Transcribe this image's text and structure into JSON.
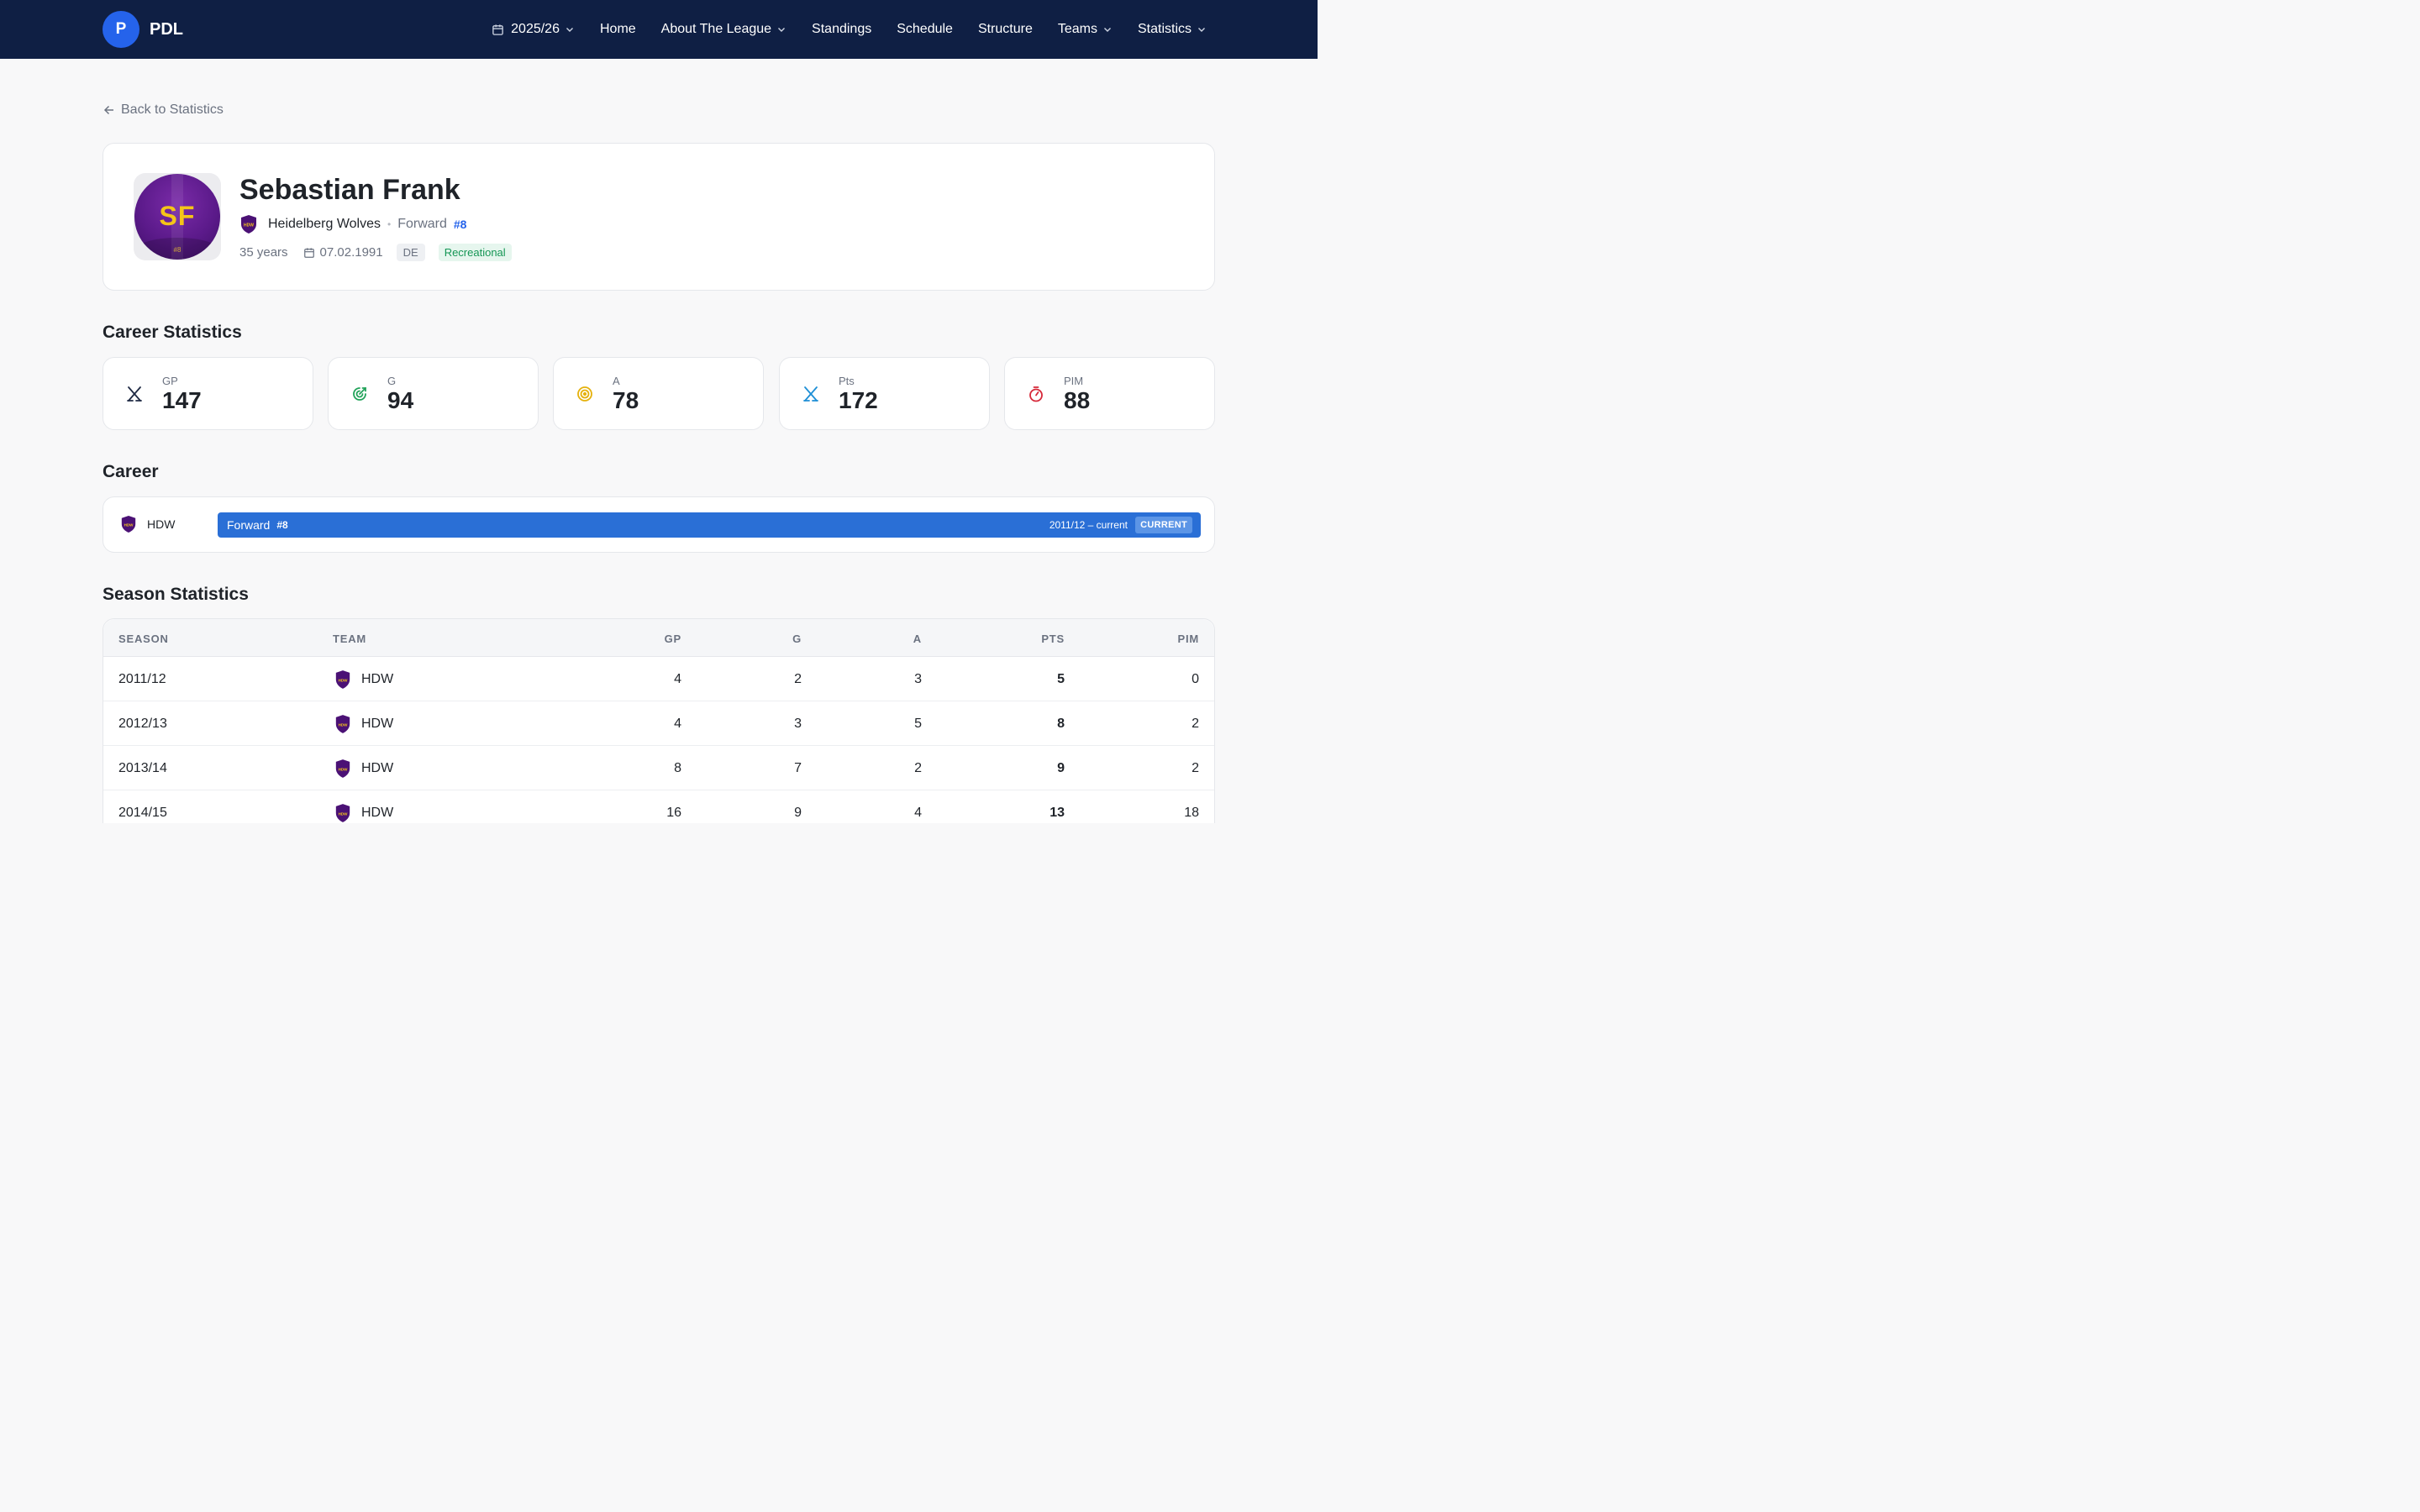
{
  "nav": {
    "brand_initial": "P",
    "brand_name": "PDL",
    "season": "2025/26",
    "items": [
      {
        "label": "Home",
        "dropdown": false
      },
      {
        "label": "About The League",
        "dropdown": true
      },
      {
        "label": "Standings",
        "dropdown": false
      },
      {
        "label": "Schedule",
        "dropdown": false
      },
      {
        "label": "Structure",
        "dropdown": false
      },
      {
        "label": "Teams",
        "dropdown": true
      },
      {
        "label": "Statistics",
        "dropdown": true
      }
    ]
  },
  "back_link": "Back to Statistics",
  "player": {
    "name": "Sebastian Frank",
    "initials": "SF",
    "avatar_number": "#8",
    "team": "Heidelberg Wolves",
    "team_abbr": "HDW",
    "position": "Forward",
    "jersey": "#8",
    "age": "35 years",
    "birthdate": "07.02.1991",
    "nationality": "DE",
    "level": "Recreational"
  },
  "sections": {
    "career_stats": "Career Statistics",
    "career": "Career",
    "season_stats": "Season Statistics"
  },
  "career_stats": [
    {
      "label": "GP",
      "value": "147",
      "icon": "crossed-sticks-icon",
      "color": "#1f2a44"
    },
    {
      "label": "G",
      "value": "94",
      "icon": "goal-target-icon",
      "color": "#22a35a"
    },
    {
      "label": "A",
      "value": "78",
      "icon": "bullseye-icon",
      "color": "#e5b10c"
    },
    {
      "label": "Pts",
      "value": "172",
      "icon": "crossed-sticks-icon",
      "color": "#1e8fd6"
    },
    {
      "label": "PIM",
      "value": "88",
      "icon": "stopwatch-icon",
      "color": "#d62839"
    }
  ],
  "career": {
    "team": "HDW",
    "position": "Forward",
    "number": "#8",
    "span": "2011/12 – current",
    "badge": "CURRENT"
  },
  "season_table": {
    "headers": {
      "season": "SEASON",
      "team": "TEAM",
      "gp": "GP",
      "g": "G",
      "a": "A",
      "pts": "PTS",
      "pim": "PIM"
    },
    "rows": [
      {
        "season": "2011/12",
        "team": "HDW",
        "gp": "4",
        "g": "2",
        "a": "3",
        "pts": "5",
        "pim": "0"
      },
      {
        "season": "2012/13",
        "team": "HDW",
        "gp": "4",
        "g": "3",
        "a": "5",
        "pts": "8",
        "pim": "2"
      },
      {
        "season": "2013/14",
        "team": "HDW",
        "gp": "8",
        "g": "7",
        "a": "2",
        "pts": "9",
        "pim": "2"
      },
      {
        "season": "2014/15",
        "team": "HDW",
        "gp": "16",
        "g": "9",
        "a": "4",
        "pts": "13",
        "pim": "18"
      }
    ]
  },
  "colors": {
    "nav_bg": "#0f1f44",
    "accent": "#2563eb",
    "career_bar": "#2a6fd6",
    "team_primary": "#4b1175",
    "team_secondary": "#f5c518"
  }
}
